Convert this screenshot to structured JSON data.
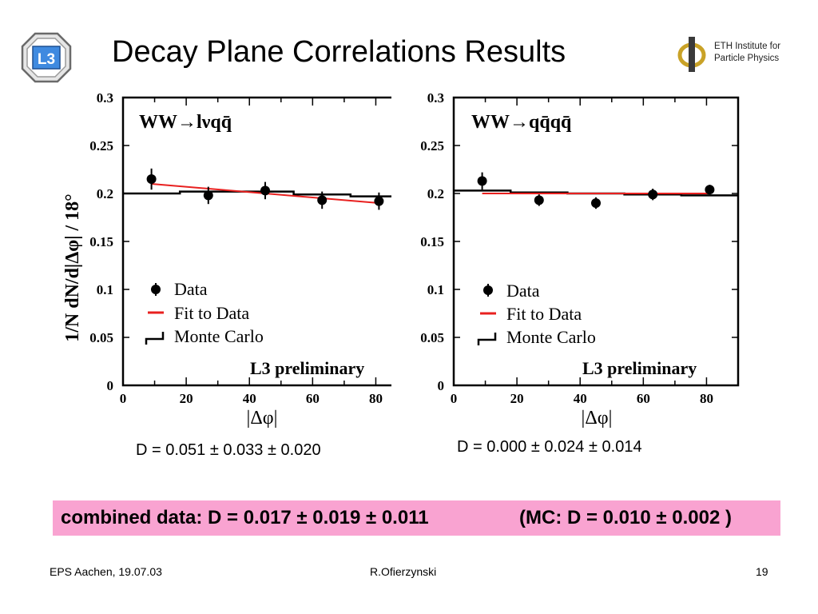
{
  "slide": {
    "title": "Decay Plane Correlations Results",
    "eth_logo": {
      "line1": "ETH Institute for",
      "line2": "Particle Physics"
    },
    "l3_logo_text": "L3",
    "results": {
      "left": "D = 0.051 ± 0.033 ± 0.020",
      "right": "D = 0.000 ± 0.024 ± 0.014"
    },
    "combined": {
      "data": "combined data: D = 0.017 ± 0.019 ± 0.011",
      "mc": "(MC: D = 0.010 ± 0.002 )"
    },
    "footer": {
      "left": "EPS Aachen, 19.07.03",
      "center": "R.Ofierzynski",
      "right": "19"
    }
  },
  "colors": {
    "fit": "#e8201f",
    "box": "#f9a3d1"
  },
  "chart_data": [
    {
      "type": "scatter",
      "panel": "left",
      "channel_label": "WW→lνqq̄",
      "preliminary": "L3 preliminary",
      "xlabel": "|Δφ|",
      "ylabel": "1/N dN/d|Δφ| / 18°",
      "xlim": [
        0,
        90
      ],
      "ylim": [
        0,
        0.3
      ],
      "xticks": [
        "0",
        "20",
        "40",
        "60",
        "80"
      ],
      "yticks": [
        "0",
        "0.05",
        "0.1",
        "0.15",
        "0.2",
        "0.25",
        "0.3"
      ],
      "legend": [
        "Data",
        "Fit to Data",
        "Monte Carlo"
      ],
      "series": [
        {
          "name": "Data",
          "x": [
            9,
            27,
            45,
            63,
            81
          ],
          "y": [
            0.215,
            0.198,
            0.203,
            0.193,
            0.192
          ],
          "err": [
            0.011,
            0.009,
            0.009,
            0.009,
            0.009
          ]
        },
        {
          "name": "Fit to Data",
          "x": [
            9,
            81
          ],
          "y": [
            0.21,
            0.19
          ]
        },
        {
          "name": "Monte Carlo",
          "edges": [
            0,
            18,
            36,
            54,
            72,
            90
          ],
          "y": [
            0.2,
            0.202,
            0.202,
            0.199,
            0.197
          ]
        }
      ]
    },
    {
      "type": "scatter",
      "panel": "right",
      "channel_label": "WW→qq̄qq̄",
      "preliminary": "L3 preliminary",
      "xlabel": "|Δφ|",
      "ylabel": "",
      "xlim": [
        0,
        90
      ],
      "ylim": [
        0,
        0.3
      ],
      "xticks": [
        "0",
        "20",
        "40",
        "60",
        "80"
      ],
      "yticks": [
        "0",
        "0.05",
        "0.1",
        "0.15",
        "0.2",
        "0.25",
        "0.3"
      ],
      "legend": [
        "Data",
        "Fit to Data",
        "Monte Carlo"
      ],
      "series": [
        {
          "name": "Data",
          "x": [
            9,
            27,
            45,
            63,
            81
          ],
          "y": [
            0.213,
            0.193,
            0.19,
            0.199,
            0.204
          ],
          "err": [
            0.009,
            0.006,
            0.006,
            0.006,
            0.005
          ]
        },
        {
          "name": "Fit to Data",
          "x": [
            9,
            81
          ],
          "y": [
            0.2,
            0.2
          ]
        },
        {
          "name": "Monte Carlo",
          "edges": [
            0,
            18,
            36,
            54,
            72,
            90
          ],
          "y": [
            0.203,
            0.201,
            0.2,
            0.199,
            0.198
          ]
        }
      ]
    }
  ]
}
